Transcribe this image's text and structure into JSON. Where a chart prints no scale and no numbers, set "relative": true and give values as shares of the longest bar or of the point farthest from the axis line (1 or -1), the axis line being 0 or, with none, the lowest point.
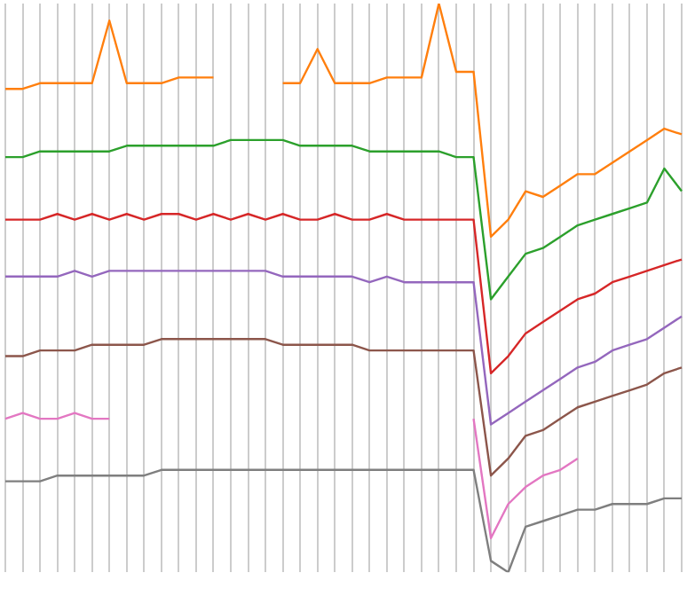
{
  "chart_data": {
    "type": "line",
    "relative": true,
    "grid": "x",
    "legend": false,
    "marker": "none",
    "line_style": "solid",
    "categories": [
      null,
      null,
      null,
      null,
      null,
      null,
      null,
      null,
      null,
      null,
      null,
      null,
      null,
      null,
      null,
      null,
      null,
      null,
      null,
      null,
      null,
      null,
      null,
      null,
      null,
      null,
      null,
      null,
      null,
      null,
      null,
      null,
      null,
      null,
      null,
      null,
      null,
      null,
      null,
      null
    ],
    "series": [
      {
        "color": "#ff7f0e",
        "values": [
          0.85,
          0.85,
          0.86,
          0.86,
          0.86,
          0.86,
          0.97,
          0.86,
          0.86,
          0.86,
          0.87,
          0.87,
          0.87,
          null,
          null,
          null,
          0.86,
          0.86,
          0.92,
          0.86,
          0.86,
          0.86,
          0.87,
          0.87,
          0.87,
          1.0,
          0.88,
          0.88,
          0.59,
          0.62,
          0.67,
          0.66,
          0.68,
          0.7,
          0.7,
          0.72,
          0.74,
          0.76,
          0.78,
          0.77
        ]
      },
      {
        "color": "#2ca02c",
        "values": [
          0.73,
          0.73,
          0.74,
          0.74,
          0.74,
          0.74,
          0.74,
          0.75,
          0.75,
          0.75,
          0.75,
          0.75,
          0.75,
          0.76,
          0.76,
          0.76,
          0.76,
          0.75,
          0.75,
          0.75,
          0.75,
          0.74,
          0.74,
          0.74,
          0.74,
          0.74,
          0.73,
          0.73,
          0.48,
          0.52,
          0.56,
          0.57,
          0.59,
          0.61,
          0.62,
          0.63,
          0.64,
          0.65,
          0.71,
          0.67
        ]
      },
      {
        "color": "#d62728",
        "values": [
          0.62,
          0.62,
          0.62,
          0.63,
          0.62,
          0.63,
          0.62,
          0.63,
          0.62,
          0.63,
          0.63,
          0.62,
          0.63,
          0.62,
          0.63,
          0.62,
          0.63,
          0.62,
          0.62,
          0.63,
          0.62,
          0.62,
          0.63,
          0.62,
          0.62,
          0.62,
          0.62,
          0.62,
          0.35,
          0.38,
          0.42,
          0.44,
          0.46,
          0.48,
          0.49,
          0.51,
          0.52,
          0.53,
          0.54,
          0.55
        ]
      },
      {
        "color": "#9467bd",
        "values": [
          0.52,
          0.52,
          0.52,
          0.52,
          0.53,
          0.52,
          0.53,
          0.53,
          0.53,
          0.53,
          0.53,
          0.53,
          0.53,
          0.53,
          0.53,
          0.53,
          0.52,
          0.52,
          0.52,
          0.52,
          0.52,
          0.51,
          0.52,
          0.51,
          0.51,
          0.51,
          0.51,
          0.51,
          0.26,
          0.28,
          0.3,
          0.32,
          0.34,
          0.36,
          0.37,
          0.39,
          0.4,
          0.41,
          0.43,
          0.45
        ]
      },
      {
        "color": "#8c564b",
        "values": [
          0.38,
          0.38,
          0.39,
          0.39,
          0.39,
          0.4,
          0.4,
          0.4,
          0.4,
          0.41,
          0.41,
          0.41,
          0.41,
          0.41,
          0.41,
          0.41,
          0.4,
          0.4,
          0.4,
          0.4,
          0.4,
          0.39,
          0.39,
          0.39,
          0.39,
          0.39,
          0.39,
          0.39,
          0.17,
          0.2,
          0.24,
          0.25,
          0.27,
          0.29,
          0.3,
          0.31,
          0.32,
          0.33,
          0.35,
          0.36
        ]
      },
      {
        "color": "#e377c2",
        "values": [
          0.27,
          0.28,
          0.27,
          0.27,
          0.28,
          0.27,
          0.27,
          null,
          null,
          null,
          null,
          null,
          null,
          null,
          null,
          null,
          null,
          null,
          null,
          null,
          null,
          null,
          null,
          null,
          null,
          null,
          null,
          0.27,
          0.06,
          0.12,
          0.15,
          0.17,
          0.18,
          0.2,
          null,
          null,
          null,
          null,
          null,
          null
        ]
      },
      {
        "color": "#7f7f7f",
        "values": [
          0.16,
          0.16,
          0.16,
          0.17,
          0.17,
          0.17,
          0.17,
          0.17,
          0.17,
          0.18,
          0.18,
          0.18,
          0.18,
          0.18,
          0.18,
          0.18,
          0.18,
          0.18,
          0.18,
          0.18,
          0.18,
          0.18,
          0.18,
          0.18,
          0.18,
          0.18,
          0.18,
          0.18,
          0.02,
          0.0,
          0.08,
          0.09,
          0.1,
          0.11,
          0.11,
          0.12,
          0.12,
          0.12,
          0.13,
          0.13
        ]
      }
    ]
  }
}
